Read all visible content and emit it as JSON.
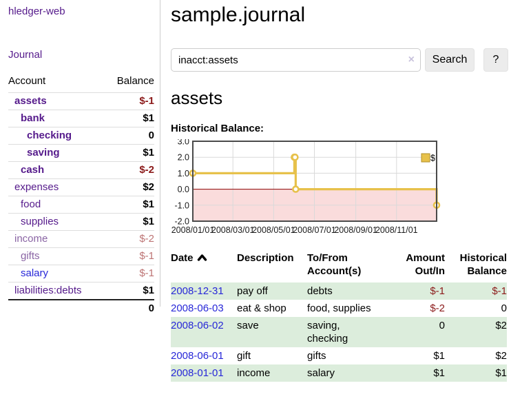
{
  "app": {
    "brand": "hledger-web",
    "nav_journal": "Journal"
  },
  "colors": {
    "link_purple": "#551a8b",
    "link_purple_dim": "#8a64a4",
    "link_blue": "#2727d8",
    "negative_red": "#8b1a1a",
    "negative_red_dim": "#bd7474",
    "row_stripe_green": "#dceddc",
    "chart_gold": "#e7c14b",
    "chart_negative_pink": "#fadcdc"
  },
  "sidebar": {
    "header": {
      "account": "Account",
      "balance": "Balance"
    },
    "accounts": [
      {
        "name": "assets",
        "depth": 1,
        "bold": true,
        "name_color": "purple",
        "balance": "$-1",
        "balance_color": "neg-strong"
      },
      {
        "name": "bank",
        "depth": 2,
        "bold": true,
        "name_color": "purple",
        "balance": "$1",
        "balance_color": "plain"
      },
      {
        "name": "checking",
        "depth": 3,
        "bold": true,
        "name_color": "purple",
        "balance": "0",
        "balance_color": "plain"
      },
      {
        "name": "saving",
        "depth": 3,
        "bold": true,
        "name_color": "purple",
        "balance": "$1",
        "balance_color": "plain"
      },
      {
        "name": "cash",
        "depth": 2,
        "bold": true,
        "name_color": "purple",
        "balance": "$-2",
        "balance_color": "neg-strong"
      },
      {
        "name": "expenses",
        "depth": 1,
        "bold": false,
        "name_color": "purple",
        "balance": "$2",
        "balance_color": "plain"
      },
      {
        "name": "food",
        "depth": 2,
        "bold": false,
        "name_color": "purple",
        "balance": "$1",
        "balance_color": "plain"
      },
      {
        "name": "supplies",
        "depth": 2,
        "bold": false,
        "name_color": "purple",
        "balance": "$1",
        "balance_color": "plain"
      },
      {
        "name": "income",
        "depth": 1,
        "bold": false,
        "name_color": "purple-dim",
        "balance": "$-2",
        "balance_color": "neg-dim"
      },
      {
        "name": "gifts",
        "depth": 2,
        "bold": false,
        "name_color": "purple-dim",
        "balance": "$-1",
        "balance_color": "neg-dim"
      },
      {
        "name": "salary",
        "depth": 2,
        "bold": false,
        "name_color": "blue",
        "balance": "$-1",
        "balance_color": "neg-dim"
      },
      {
        "name": "liabilities:debts",
        "depth": 1,
        "bold": false,
        "name_color": "purple",
        "balance": "$1",
        "balance_color": "plain"
      }
    ],
    "total": "0"
  },
  "main": {
    "title": "sample.journal",
    "search": {
      "value": "inacct:assets",
      "clear_icon": "×",
      "button_label": "Search",
      "help_label": "?"
    },
    "account_heading": "assets",
    "chart_label": "Historical Balance:"
  },
  "chart_data": {
    "type": "line",
    "step": true,
    "title": "Historical Balance",
    "series": [
      {
        "name": "$",
        "color": "#e7c14b",
        "points": [
          {
            "date": "2008-01-01",
            "value": 1
          },
          {
            "date": "2008-06-01",
            "value": 2
          },
          {
            "date": "2008-06-02",
            "value": 2
          },
          {
            "date": "2008-06-03",
            "value": 0
          },
          {
            "date": "2008-12-31",
            "value": -1
          }
        ]
      }
    ],
    "xlim": [
      "2008-01-01",
      "2008-12-31"
    ],
    "ylim": [
      -2.0,
      3.0
    ],
    "yticks": [
      3.0,
      2.0,
      1.0,
      0.0,
      -1.0,
      -2.0
    ],
    "xticks": [
      "2008/01/01",
      "2008/03/01",
      "2008/05/01",
      "2008/07/01",
      "2008/09/01",
      "2008/11/01"
    ],
    "legend_position": "top-right",
    "grid": true,
    "negative_fill": "#fadcdc",
    "zero_line_color": "#8b0000"
  },
  "register": {
    "headers": [
      "Date",
      "Description",
      "To/From Account(s)",
      "Amount Out/In",
      "Historical Balance"
    ],
    "sort": "ascending",
    "rows": [
      {
        "date": "2008-12-31",
        "description": "pay off",
        "accounts": "debts",
        "amount": "$-1",
        "amount_neg": true,
        "balance": "$-1",
        "balance_neg": true
      },
      {
        "date": "2008-06-03",
        "description": "eat & shop",
        "accounts": "food, supplies",
        "amount": "$-2",
        "amount_neg": true,
        "balance": "0",
        "balance_neg": false
      },
      {
        "date": "2008-06-02",
        "description": "save",
        "accounts": "saving,\nchecking",
        "amount": "0",
        "amount_neg": false,
        "balance": "$2",
        "balance_neg": false
      },
      {
        "date": "2008-06-01",
        "description": "gift",
        "accounts": "gifts",
        "amount": "$1",
        "amount_neg": false,
        "balance": "$2",
        "balance_neg": false
      },
      {
        "date": "2008-01-01",
        "description": "income",
        "accounts": "salary",
        "amount": "$1",
        "amount_neg": false,
        "balance": "$1",
        "balance_neg": false
      }
    ]
  }
}
